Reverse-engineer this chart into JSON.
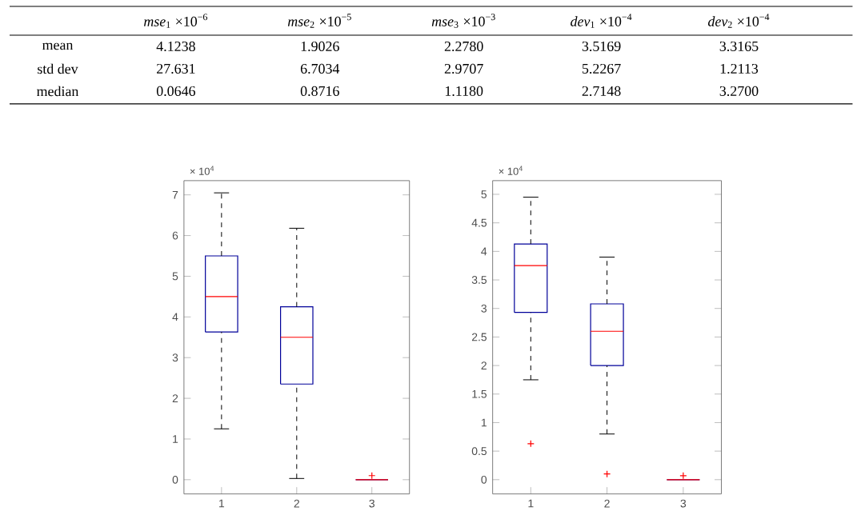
{
  "chart_data": [
    {
      "type": "other",
      "categories": [
        "*mse*$_{1}$ ×10$^{−6}$",
        "*mse*$_{2}$ ×10$^{−5}$",
        "*mse*$_{3}$ ×10$^{−3}$",
        "*dev*$_{1}$ ×10$^{−4}$",
        "*dev*$_{2}$ ×10$^{−4}$"
      ],
      "y_categories": [
        "mean",
        "std dev",
        "median"
      ],
      "cell_labels": [
        [
          "4.1238",
          "1.9026",
          "2.2780",
          "3.5169",
          "3.3165"
        ],
        [
          "27.631",
          "6.7034",
          "2.9707",
          "5.2267",
          "1.2113"
        ],
        [
          "0.0646",
          "0.8716",
          "1.1180",
          "2.7148",
          "3.2700"
        ]
      ]
    },
    {
      "type": "box",
      "categories": [
        "1",
        "2",
        "3"
      ],
      "ylim": [
        -0.35,
        7.35
      ],
      "yticks": [
        0,
        1,
        2,
        3,
        4,
        5,
        6,
        7
      ],
      "annotations": [
        "× 10$^{4}$"
      ],
      "boxes": [
        {
          "low": 1.25,
          "q1": 3.63,
          "median": 4.5,
          "q3": 5.5,
          "high": 7.05
        },
        {
          "low": 0.03,
          "q1": 2.35,
          "median": 3.5,
          "q3": 4.25,
          "high": 6.18
        },
        {
          "low": 0.0,
          "q1": 0.0,
          "median": 0.0,
          "q3": 0.0,
          "high": 0.0,
          "outliers": [
            0.1
          ]
        }
      ]
    },
    {
      "type": "box",
      "categories": [
        "1",
        "2",
        "3"
      ],
      "ylim": [
        -0.25,
        5.24
      ],
      "yticks": [
        0,
        0.5,
        1,
        1.5,
        2,
        2.5,
        3,
        3.5,
        4,
        4.5,
        5
      ],
      "annotations": [
        "× 10$^{4}$"
      ],
      "boxes": [
        {
          "low": 1.75,
          "q1": 2.93,
          "median": 3.75,
          "q3": 4.13,
          "high": 4.95,
          "outliers": [
            0.63
          ]
        },
        {
          "low": 0.8,
          "q1": 2.0,
          "median": 2.6,
          "q3": 3.08,
          "high": 3.9,
          "outliers": [
            0.1
          ]
        },
        {
          "low": 0.0,
          "q1": 0.0,
          "median": 0.0,
          "q3": 0.0,
          "high": 0.0,
          "outliers": [
            0.07
          ]
        }
      ]
    }
  ]
}
